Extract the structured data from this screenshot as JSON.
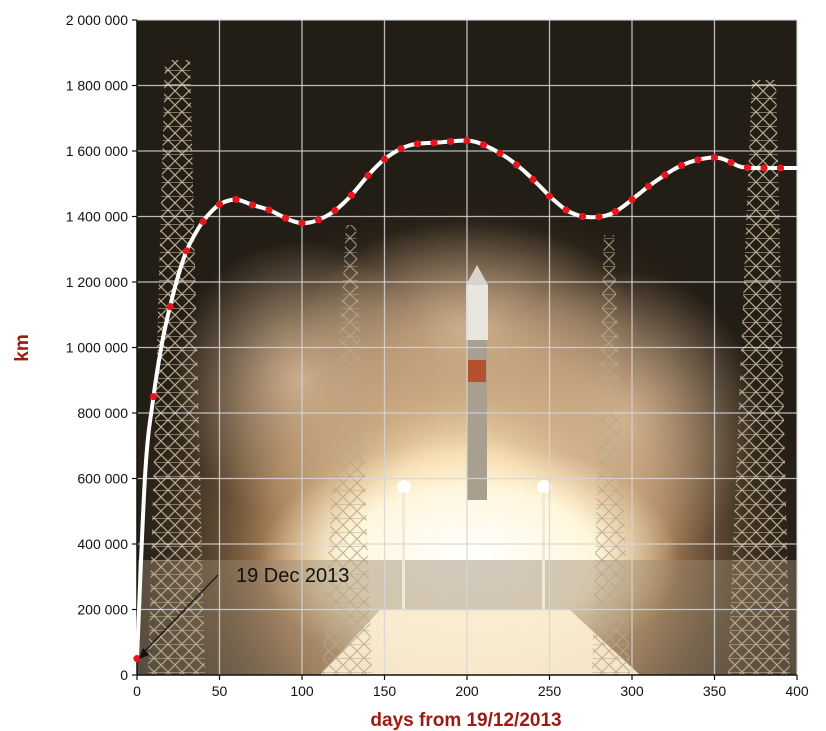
{
  "chart_data": {
    "type": "line",
    "title": "",
    "xlabel": "days from 19/12/2013",
    "ylabel": "km",
    "xlim": [
      0,
      400
    ],
    "ylim": [
      0,
      2000000
    ],
    "xticks": [
      0,
      50,
      100,
      150,
      200,
      250,
      300,
      350,
      400
    ],
    "yticks": [
      0,
      200000,
      400000,
      600000,
      800000,
      1000000,
      1200000,
      1400000,
      1600000,
      1800000,
      2000000
    ],
    "xtick_labels": [
      "0",
      "50",
      "100",
      "150",
      "200",
      "250",
      "300",
      "350",
      "400"
    ],
    "ytick_labels": [
      "0",
      "200 000",
      "400 000",
      "600 000",
      "800 000",
      "1 000 000",
      "1 200 000",
      "1 400 000",
      "1 600 000",
      "1 800 000",
      "2 000 000"
    ],
    "grid": true,
    "background": "rocket launch photograph",
    "series": [
      {
        "line_color": "#ffffff",
        "marker_color": "#e8141e",
        "x": [
          0,
          5,
          10,
          15,
          20,
          25,
          30,
          35,
          40,
          45,
          50,
          55,
          60,
          65,
          70,
          75,
          80,
          85,
          90,
          95,
          100,
          105,
          110,
          115,
          120,
          125,
          130,
          135,
          140,
          145,
          150,
          155,
          160,
          165,
          170,
          175,
          180,
          185,
          190,
          195,
          200,
          205,
          210,
          215,
          220,
          225,
          230,
          235,
          240,
          245,
          250,
          255,
          260,
          265,
          270,
          275,
          280,
          285,
          290,
          295,
          300,
          305,
          310,
          315,
          320,
          325,
          330,
          335,
          340,
          345,
          350,
          355,
          360,
          365,
          370,
          375,
          380,
          385,
          390,
          395,
          400
        ],
        "y": [
          50000,
          620000,
          850000,
          1010000,
          1125000,
          1220000,
          1295000,
          1345000,
          1385000,
          1415000,
          1437000,
          1448000,
          1452000,
          1445000,
          1435000,
          1428000,
          1420000,
          1408000,
          1395000,
          1385000,
          1380000,
          1382000,
          1390000,
          1402000,
          1418000,
          1440000,
          1465000,
          1495000,
          1525000,
          1552000,
          1575000,
          1593000,
          1607000,
          1617000,
          1622000,
          1624000,
          1625000,
          1627000,
          1629000,
          1631000,
          1632000,
          1628000,
          1619000,
          1607000,
          1593000,
          1577000,
          1558000,
          1537000,
          1513000,
          1488000,
          1462000,
          1440000,
          1420000,
          1408000,
          1400000,
          1398000,
          1399000,
          1404000,
          1415000,
          1432000,
          1452000,
          1472000,
          1492000,
          1510000,
          1527000,
          1543000,
          1556000,
          1566000,
          1573000,
          1578000,
          1580000,
          1576000,
          1565000,
          1553000,
          1549000,
          1548000,
          1548000,
          1548000,
          1548000,
          1548000,
          1548000
        ]
      }
    ],
    "marker_x": [
      0,
      10,
      20,
      30,
      40,
      50,
      60,
      70,
      80,
      90,
      100,
      110,
      120,
      130,
      140,
      150,
      160,
      170,
      180,
      190,
      200,
      210,
      220,
      230,
      240,
      250,
      260,
      270,
      280,
      290,
      300,
      310,
      320,
      330,
      340,
      350,
      360,
      370,
      380,
      390
    ],
    "annotations": [
      {
        "text": "19 Dec 2013",
        "x": 0,
        "y": 50000
      }
    ]
  }
}
